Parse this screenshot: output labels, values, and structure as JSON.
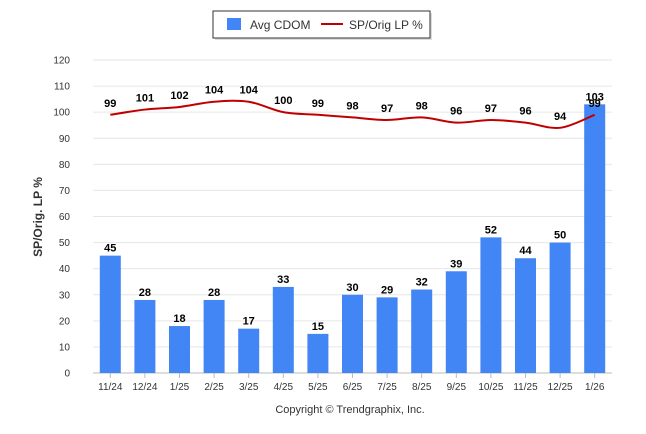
{
  "chart_data": {
    "type": "bar+line",
    "categories": [
      "11/24",
      "12/24",
      "1/25",
      "2/25",
      "3/25",
      "4/25",
      "5/25",
      "6/25",
      "7/25",
      "8/25",
      "9/25",
      "10/25",
      "11/25",
      "12/25",
      "1/26"
    ],
    "series": [
      {
        "name": "Avg CDOM",
        "type": "bar",
        "color": "#4285f4",
        "values": [
          45,
          28,
          18,
          28,
          17,
          33,
          15,
          30,
          29,
          32,
          39,
          52,
          44,
          50,
          103
        ]
      },
      {
        "name": "SP/Orig LP %",
        "type": "line",
        "color": "#c00000",
        "values": [
          99,
          101,
          102,
          104,
          104,
          100,
          99,
          98,
          97,
          98,
          96,
          97,
          96,
          94,
          99
        ]
      }
    ],
    "ylabel": "SP/Orig. LP %",
    "ylim": [
      0,
      120
    ],
    "yticks": [
      0,
      10,
      20,
      30,
      40,
      50,
      60,
      70,
      80,
      90,
      100,
      110,
      120
    ],
    "grid": true,
    "legend_position": "top-center"
  },
  "footer": "Copyright © Trendgraphix, Inc."
}
